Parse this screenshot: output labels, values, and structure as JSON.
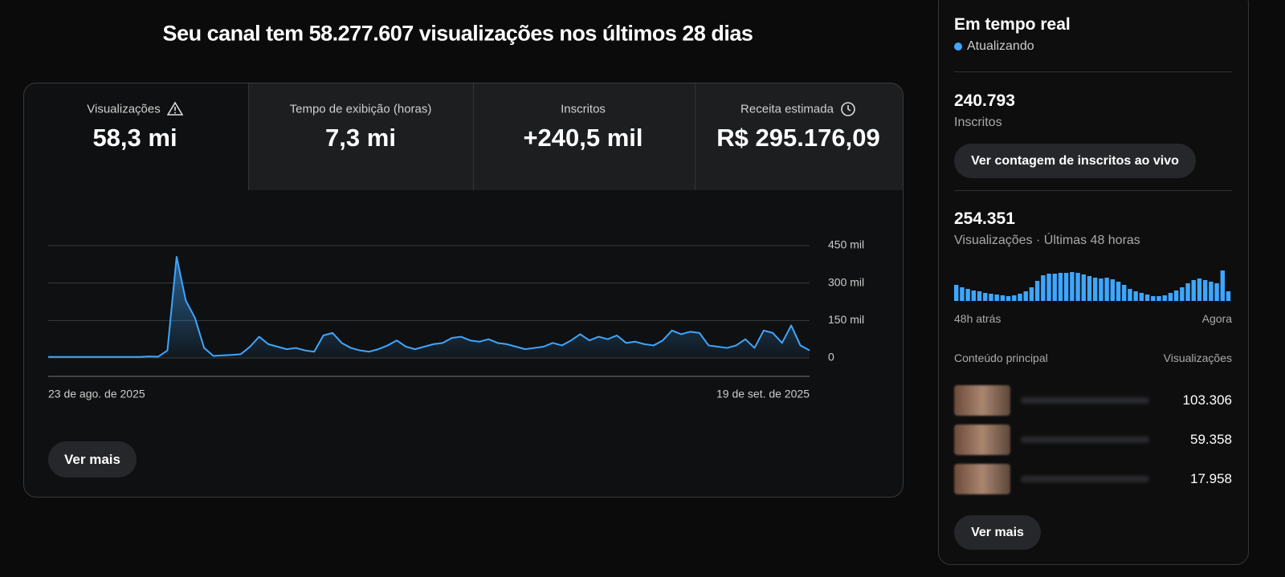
{
  "header": {
    "title": "Seu canal tem 58.277.607 visualizações nos últimos 28 dias"
  },
  "metrics": [
    {
      "label": "Visualizações",
      "value": "58,3 mi"
    },
    {
      "label": "Tempo de exibição (horas)",
      "value": "7,3 mi"
    },
    {
      "label": "Inscritos",
      "value": "+240,5 mil"
    },
    {
      "label": "Receita estimada",
      "value": "R$ 295.176,09"
    }
  ],
  "chart_data": {
    "type": "area",
    "categories": [
      "23 de ago. de 2025",
      null,
      null,
      null,
      null,
      null,
      null,
      null,
      null,
      null,
      null,
      null,
      null,
      null,
      null,
      null,
      null,
      null,
      null,
      null,
      null,
      null,
      null,
      null,
      null,
      null,
      null,
      null,
      null,
      null,
      null,
      null,
      null,
      null,
      null,
      null,
      null,
      null,
      null,
      null,
      null,
      null,
      null,
      null,
      null,
      null,
      null,
      null,
      null,
      null,
      null,
      null,
      null,
      null,
      null,
      null,
      null,
      null,
      null,
      null,
      null,
      null,
      null,
      null,
      null,
      null,
      null,
      null,
      null,
      null,
      null,
      null,
      null,
      null,
      null,
      null,
      null,
      null,
      null,
      null,
      null,
      null,
      null,
      "19 de set. de 2025"
    ],
    "values": [
      4,
      4,
      4,
      4,
      4,
      4,
      4,
      4,
      4,
      4,
      4,
      6,
      5,
      30,
      405,
      230,
      160,
      40,
      8,
      10,
      12,
      15,
      45,
      85,
      55,
      45,
      35,
      40,
      30,
      25,
      90,
      100,
      60,
      40,
      30,
      25,
      35,
      50,
      70,
      45,
      35,
      45,
      55,
      60,
      80,
      85,
      70,
      65,
      75,
      60,
      55,
      45,
      35,
      40,
      45,
      60,
      50,
      70,
      95,
      70,
      85,
      75,
      90,
      60,
      65,
      55,
      50,
      70,
      110,
      95,
      105,
      100,
      50,
      45,
      40,
      50,
      75,
      40,
      110,
      100,
      60,
      130,
      50,
      30
    ],
    "color": "#3ea6ff",
    "ylim": [
      0,
      450
    ],
    "yticks": [
      0,
      {
        "value": 150,
        "label": "150 mil"
      },
      {
        "value": 300,
        "label": "300 mil"
      },
      {
        "value": 450,
        "label": "450 mil"
      }
    ],
    "grid": true
  },
  "more_button": "Ver mais",
  "realtime": {
    "title": "Em tempo real",
    "status": "Atualizando",
    "subscribers": {
      "value": "240.793",
      "label": "Inscritos",
      "button": "Ver contagem de inscritos ao vivo"
    },
    "views": {
      "value": "254.351",
      "label": "Visualizações · Últimas 48 horas"
    },
    "bars": {
      "type": "bar",
      "color": "#3ea6ff",
      "ylim": [
        0,
        10000
      ],
      "values": [
        5000,
        4250,
        3750,
        3250,
        3000,
        2500,
        2250,
        2000,
        1750,
        1500,
        1750,
        2250,
        3000,
        4250,
        6250,
        8000,
        8500,
        8500,
        8750,
        8750,
        9000,
        8750,
        8250,
        7750,
        7250,
        7000,
        7250,
        6750,
        6000,
        5000,
        3750,
        3000,
        2500,
        2000,
        1500,
        1500,
        1750,
        2500,
        3250,
        4250,
        5500,
        6500,
        7000,
        6500,
        6000,
        5500,
        9500,
        3000
      ],
      "start_label": "48h atrás",
      "end_label": "Agora"
    },
    "top_content": {
      "header": "Conteúdo principal",
      "column": "Visualizações",
      "items": [
        {
          "views": "103.306"
        },
        {
          "views": "59.358"
        },
        {
          "views": "17.958"
        }
      ]
    },
    "more_button": "Ver mais"
  }
}
